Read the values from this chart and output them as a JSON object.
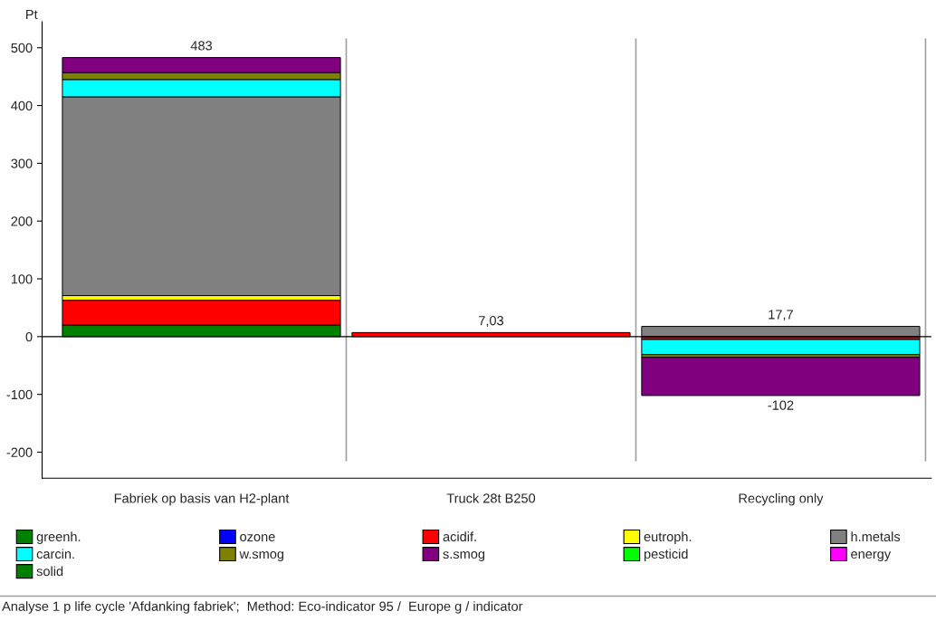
{
  "chart_data": {
    "type": "bar",
    "stacked": true,
    "ylabel": "Pt",
    "categories": [
      "Fabriek op basis van H2-plant",
      "Truck 28t B250",
      "Recycling only"
    ],
    "series": [
      {
        "name": "greenh.",
        "color": "#008000",
        "values": [
          20,
          null,
          null
        ]
      },
      {
        "name": "ozone",
        "color": "#0000ff",
        "values": [
          null,
          null,
          null
        ]
      },
      {
        "name": "acidif.",
        "color": "#ff0000",
        "values": [
          43,
          7.03,
          -5
        ]
      },
      {
        "name": "eutroph.",
        "color": "#ffff00",
        "values": [
          8,
          null,
          null
        ]
      },
      {
        "name": "h.metals",
        "color": "#808080",
        "values": [
          344,
          null,
          17.7
        ]
      },
      {
        "name": "carcin.",
        "color": "#00ffff",
        "values": [
          30,
          null,
          -26
        ]
      },
      {
        "name": "w.smog",
        "color": "#808000",
        "values": [
          12,
          null,
          -5
        ]
      },
      {
        "name": "s.smog",
        "color": "#800080",
        "values": [
          26,
          null,
          -66
        ]
      },
      {
        "name": "pesticid",
        "color": "#00ff00",
        "values": [
          null,
          null,
          null
        ]
      },
      {
        "name": "energy",
        "color": "#ff00ff",
        "values": [
          null,
          null,
          null
        ]
      },
      {
        "name": "solid",
        "color": "#008000",
        "values": [
          null,
          null,
          null
        ]
      }
    ],
    "annotations": [
      {
        "text": "483",
        "x": "Fabriek op basis van H2-plant",
        "y": 483
      },
      {
        "text": "7,03",
        "x": "Truck 28t B250",
        "y": 7.03
      },
      {
        "text": "17,7",
        "x": "Recycling only",
        "y": 17.7
      },
      {
        "text": "-102",
        "x": "Recycling only",
        "y": -102
      },
      "Analyse 1 p life cycle 'Afdanking fabriek';  Method: Eco-indicator 95 /  Europe g / indicator"
    ],
    "ylim": [
      -245,
      545
    ],
    "yticks": [
      -200,
      -100,
      0,
      100,
      200,
      300,
      400,
      500
    ],
    "grid": "x",
    "legend": "bottom"
  }
}
